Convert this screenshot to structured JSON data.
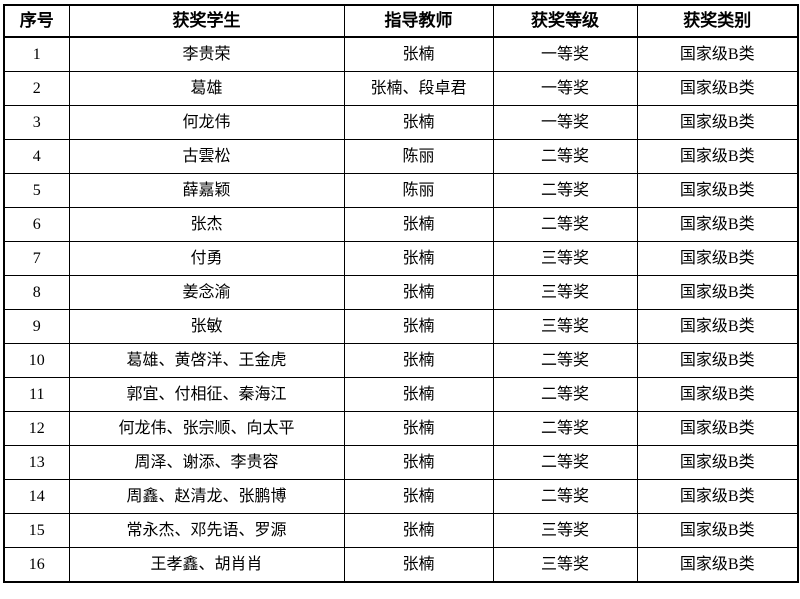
{
  "colors": {
    "border": "#000000",
    "text": "#000000",
    "background": "#ffffff"
  },
  "table": {
    "columns": [
      {
        "key": "index",
        "label": "序号"
      },
      {
        "key": "students",
        "label": "获奖学生"
      },
      {
        "key": "teacher",
        "label": "指导教师"
      },
      {
        "key": "level",
        "label": "获奖等级"
      },
      {
        "key": "category",
        "label": "获奖类别"
      }
    ],
    "rows": [
      [
        "1",
        "李贵荣",
        "张楠",
        "一等奖",
        "国家级B类"
      ],
      [
        "2",
        "葛雄",
        "张楠、段卓君",
        "一等奖",
        "国家级B类"
      ],
      [
        "3",
        "何龙伟",
        "张楠",
        "一等奖",
        "国家级B类"
      ],
      [
        "4",
        "古雲松",
        "陈丽",
        "二等奖",
        "国家级B类"
      ],
      [
        "5",
        "薛嘉颖",
        "陈丽",
        "二等奖",
        "国家级B类"
      ],
      [
        "6",
        "张杰",
        "张楠",
        "二等奖",
        "国家级B类"
      ],
      [
        "7",
        "付勇",
        "张楠",
        "三等奖",
        "国家级B类"
      ],
      [
        "8",
        "姜念渝",
        "张楠",
        "三等奖",
        "国家级B类"
      ],
      [
        "9",
        "张敏",
        "张楠",
        "三等奖",
        "国家级B类"
      ],
      [
        "10",
        "葛雄、黄啓洋、王金虎",
        "张楠",
        "二等奖",
        "国家级B类"
      ],
      [
        "11",
        "郭宜、付相征、秦海江",
        "张楠",
        "二等奖",
        "国家级B类"
      ],
      [
        "12",
        "何龙伟、张宗顺、向太平",
        "张楠",
        "二等奖",
        "国家级B类"
      ],
      [
        "13",
        "周泽、谢添、李贵容",
        "张楠",
        "二等奖",
        "国家级B类"
      ],
      [
        "14",
        "周鑫、赵清龙、张鹏博",
        "张楠",
        "二等奖",
        "国家级B类"
      ],
      [
        "15",
        "常永杰、邓先语、罗源",
        "张楠",
        "三等奖",
        "国家级B类"
      ],
      [
        "16",
        "王孝鑫、胡肖肖",
        "张楠",
        "三等奖",
        "国家级B类"
      ]
    ]
  }
}
